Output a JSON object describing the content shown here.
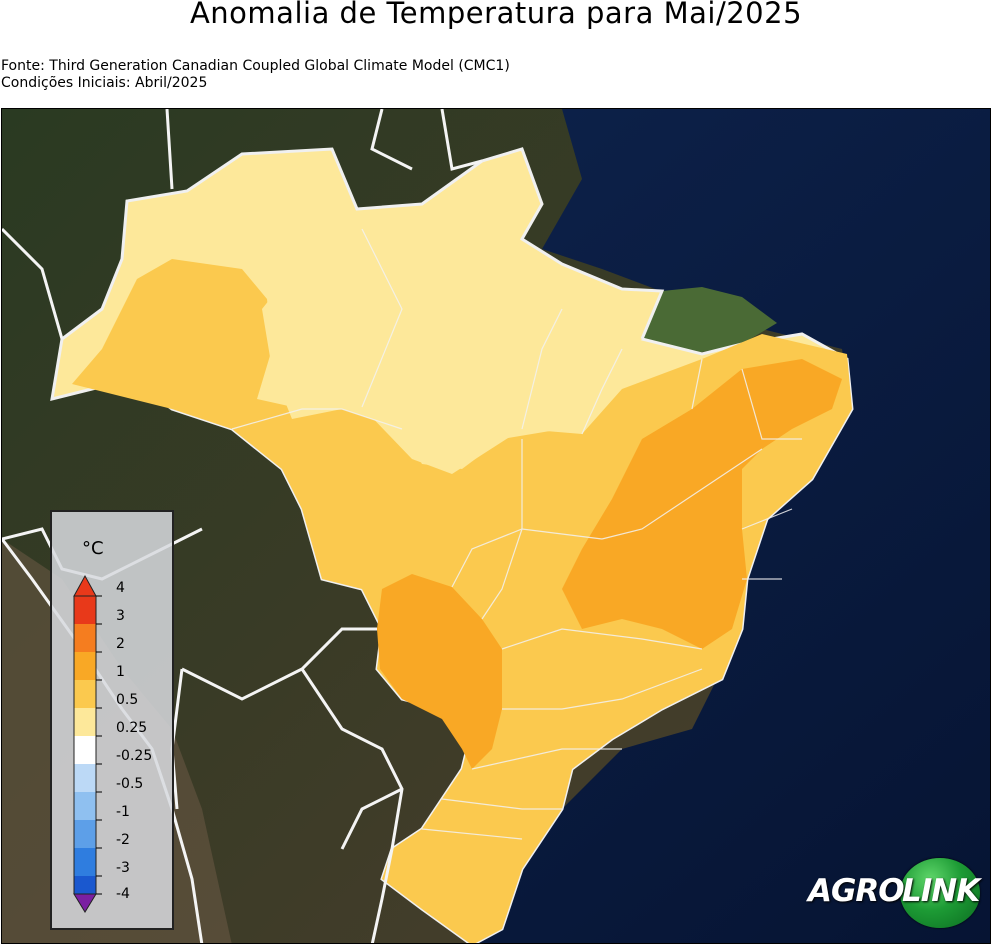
{
  "title": "Anomalia de Temperatura para Mai/2025",
  "source_line": "Fonte: Third Generation Canadian Coupled Global Climate Model (CMC1)",
  "initial_conditions_line": "Condições Iniciais: Abril/2025",
  "legend": {
    "unit": "°C",
    "ticks": [
      "4",
      "3",
      "2",
      "1",
      "0.5",
      "0.25",
      "-0.25",
      "-0.5",
      "-1",
      "-2",
      "-3",
      "-4"
    ],
    "colors": {
      "above_3": "#e8391a",
      "2_to_3": "#f57d1f",
      "1_to_2": "#f9a825",
      "0.5_to_1": "#fbc94e",
      "0.25_to_0.5": "#fde89a",
      "neutral": "#ffffff",
      "-0.5_to_-0.25": "#bcd9f6",
      "-1_to_-0.5": "#8fc0f0",
      "-2_to_-1": "#5d9fe8",
      "-3_to_-2": "#2f7ddf",
      "-4_to_-3": "#1a58cf",
      "below_-4": "#7a1fa2"
    }
  },
  "logo": {
    "part1": "AGRO",
    "part2": "LINK"
  }
}
